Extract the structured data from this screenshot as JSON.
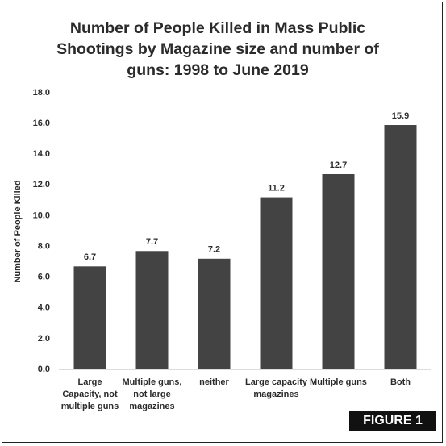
{
  "chart_data": {
    "type": "bar",
    "title": "Number of People Killed in Mass Public Shootings by Magazine size and number of guns: 1998 to June 2019",
    "y_label": "Number of People Killed",
    "categories": [
      "Large Capacity, not multiple guns",
      "Multiple guns, not large magazines",
      "neither",
      "Large capacity magazines",
      "Multiple guns",
      "Both"
    ],
    "values": [
      6.7,
      7.7,
      7.2,
      11.2,
      12.7,
      15.9
    ],
    "color": "#434343",
    "ylim": [
      0,
      18
    ],
    "yticks": [
      {
        "value": 0,
        "label": "0.0"
      },
      {
        "value": 2,
        "label": "2.0"
      },
      {
        "value": 4,
        "label": "4.0"
      },
      {
        "value": 6,
        "label": "6.0"
      },
      {
        "value": 8,
        "label": "8.0"
      },
      {
        "value": 10,
        "label": "10.0"
      },
      {
        "value": 12,
        "label": "12.0"
      },
      {
        "value": 14,
        "label": "14.0"
      },
      {
        "value": 16,
        "label": "16.0"
      },
      {
        "value": 18,
        "label": "18.0"
      }
    ],
    "grid": false,
    "figure_label": "FIGURE 1"
  }
}
